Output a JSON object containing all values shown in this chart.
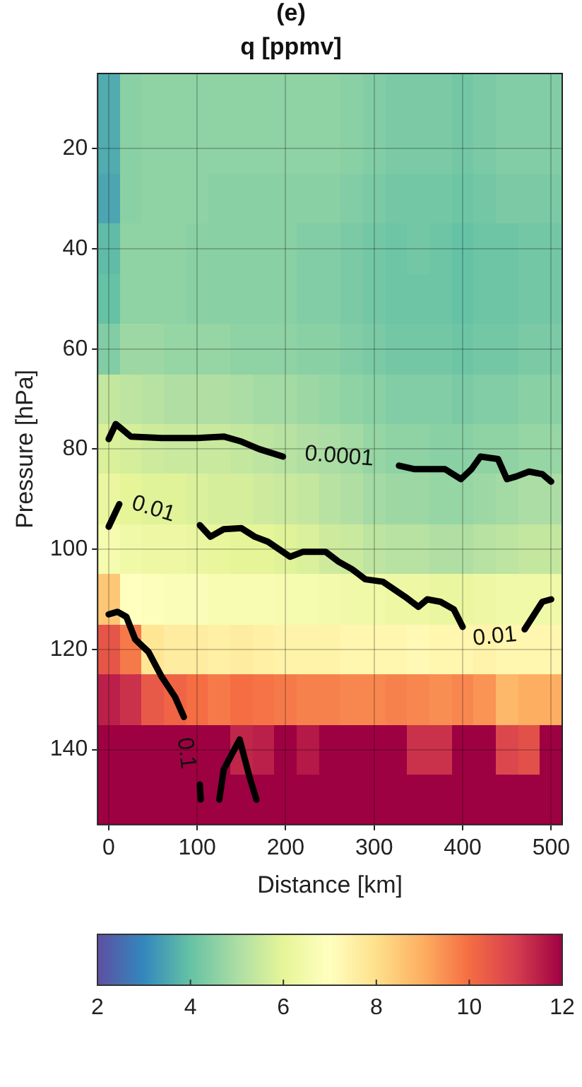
{
  "chart_data": [
    {
      "type": "heatmap",
      "title": "(e)",
      "subtitle": "q [ppmv]",
      "clim": [
        2,
        12
      ],
      "cticks": [
        2,
        4,
        6,
        8,
        10,
        12
      ],
      "tick_labels": false,
      "categories": [
        "0",
        null,
        null,
        null,
        "100",
        null,
        null,
        null,
        "200",
        null,
        null,
        null,
        "300",
        null,
        null,
        null,
        "400",
        null,
        null,
        null,
        "500"
      ],
      "y_categories": [
        null,
        "20",
        null,
        "40",
        null,
        "60",
        null,
        "80",
        null,
        "100",
        null,
        "120",
        null,
        "140",
        null
      ],
      "cells": [
        [
          3.6,
          4.5,
          4.6,
          4.6,
          4.6,
          4.6,
          4.6,
          4.6,
          4.6,
          4.6,
          4.6,
          4.5,
          4.4,
          4.3,
          4.3,
          4.3,
          4.2,
          4.3,
          4.4,
          4.4,
          4.4
        ],
        [
          3.6,
          4.5,
          4.6,
          4.6,
          4.6,
          4.6,
          4.6,
          4.6,
          4.6,
          4.6,
          4.6,
          4.5,
          4.4,
          4.3,
          4.3,
          4.3,
          4.2,
          4.3,
          4.4,
          4.4,
          4.4
        ],
        [
          3.5,
          4.5,
          4.6,
          4.6,
          4.6,
          4.5,
          4.5,
          4.5,
          4.5,
          4.5,
          4.5,
          4.4,
          4.3,
          4.2,
          4.2,
          4.2,
          4.1,
          4.2,
          4.3,
          4.3,
          4.3
        ],
        [
          3.9,
          4.6,
          4.6,
          4.6,
          4.5,
          4.5,
          4.5,
          4.5,
          4.5,
          4.4,
          4.4,
          4.3,
          4.2,
          4.1,
          4.2,
          4.1,
          4.0,
          4.1,
          4.1,
          4.2,
          4.2
        ],
        [
          4.0,
          4.6,
          4.6,
          4.6,
          4.5,
          4.5,
          4.5,
          4.5,
          4.5,
          4.4,
          4.4,
          4.3,
          4.2,
          4.1,
          4.1,
          4.1,
          4.0,
          4.1,
          4.1,
          4.2,
          4.2
        ],
        [
          4.4,
          4.8,
          4.8,
          4.7,
          4.7,
          4.7,
          4.6,
          4.6,
          4.6,
          4.5,
          4.5,
          4.4,
          4.3,
          4.2,
          4.2,
          4.2,
          4.1,
          4.2,
          4.2,
          4.3,
          4.3
        ],
        [
          5.4,
          5.3,
          5.2,
          5.1,
          5.1,
          5.1,
          5.0,
          4.9,
          4.9,
          4.8,
          4.7,
          4.6,
          4.5,
          4.4,
          4.4,
          4.4,
          4.3,
          4.4,
          4.4,
          4.5,
          4.5
        ],
        [
          5.8,
          5.7,
          5.6,
          5.5,
          5.5,
          5.5,
          5.4,
          5.3,
          5.2,
          5.1,
          5.0,
          4.9,
          4.7,
          4.6,
          4.6,
          4.5,
          4.5,
          4.6,
          4.6,
          4.7,
          4.7
        ],
        [
          6.2,
          6.0,
          5.9,
          5.9,
          5.8,
          5.7,
          5.7,
          5.6,
          5.5,
          5.4,
          5.2,
          5.1,
          4.9,
          4.8,
          4.8,
          4.7,
          4.7,
          4.8,
          4.9,
          5.0,
          5.0
        ],
        [
          6.6,
          6.4,
          6.3,
          6.3,
          6.2,
          6.1,
          6.0,
          6.0,
          5.9,
          5.8,
          5.6,
          5.5,
          5.3,
          5.2,
          5.2,
          5.1,
          5.1,
          5.2,
          5.3,
          5.4,
          5.4
        ],
        [
          8.5,
          7.0,
          6.9,
          6.8,
          6.8,
          6.7,
          6.7,
          6.7,
          6.6,
          6.6,
          6.5,
          6.4,
          6.4,
          6.3,
          6.3,
          6.2,
          6.2,
          6.3,
          6.4,
          6.4,
          6.4
        ],
        [
          10.5,
          9.8,
          7.8,
          7.6,
          7.6,
          7.5,
          7.6,
          7.5,
          7.4,
          7.4,
          7.4,
          7.3,
          7.3,
          7.3,
          7.2,
          7.3,
          7.3,
          7.4,
          7.3,
          7.3,
          7.3
        ],
        [
          11.5,
          11.2,
          10.4,
          10.2,
          10.0,
          9.8,
          10.0,
          9.9,
          9.8,
          9.7,
          9.7,
          9.6,
          9.6,
          9.7,
          9.6,
          9.5,
          9.6,
          9.4,
          8.8,
          9.0,
          9.0
        ],
        [
          12,
          12,
          12,
          12,
          12,
          12,
          11.4,
          11.5,
          12,
          11.6,
          12,
          12,
          12,
          12,
          11.2,
          11.2,
          12,
          12,
          10.8,
          10.6,
          12
        ],
        [
          12,
          12,
          12,
          12,
          12,
          12,
          12,
          12,
          12,
          12,
          12,
          12,
          12,
          12,
          12,
          12,
          12,
          12,
          12,
          12,
          12
        ]
      ]
    },
    {
      "type": "line",
      "xlabel": "Distance [km]",
      "ylabel": "Pressure [hPa]",
      "grid": true,
      "xlim": [
        -12.5,
        512.5
      ],
      "xticks": [
        0,
        100,
        200,
        300,
        400,
        500
      ],
      "ylim": [
        155,
        5
      ],
      "yticks": [
        20,
        40,
        60,
        80,
        100,
        120,
        140
      ],
      "series": [
        {
          "color": "#000000",
          "x": [
            0,
            8,
            15,
            25,
            60,
            100,
            130,
            150,
            170,
            197,
            262,
            328,
            345,
            380,
            398,
            410,
            420,
            440,
            450,
            460,
            475,
            490,
            500
          ],
          "values": [
            78,
            75,
            76,
            77.5,
            77.8,
            77.8,
            77.5,
            78.5,
            80,
            81.5,
            null,
            83.3,
            84,
            84,
            86,
            84,
            81.5,
            82,
            86,
            85.5,
            84.5,
            85,
            86.5
          ]
        },
        {
          "color": "#000000",
          "x": [
            0,
            12,
            50,
            103,
            115,
            130,
            150,
            165,
            180,
            205,
            220,
            245,
            260,
            275,
            290,
            310,
            335,
            350,
            360,
            375,
            390,
            400,
            435,
            470,
            490,
            500
          ],
          "values": [
            95.5,
            91,
            null,
            95.2,
            97.5,
            96,
            95.8,
            97.5,
            98.5,
            101.5,
            100.5,
            100.5,
            102.5,
            104,
            106,
            106.5,
            109.5,
            111.5,
            110,
            110.5,
            112,
            115.5,
            null,
            116,
            110.5,
            110
          ]
        },
        {
          "color": "#000000",
          "x": [
            0,
            10,
            20,
            30,
            45,
            60,
            75,
            85,
            95,
            103,
            104,
            115,
            125,
            130,
            148,
            160,
            167
          ],
          "values": [
            113,
            112.5,
            113.5,
            118,
            120.5,
            125.5,
            129.5,
            133.5,
            null,
            147,
            150,
            null,
            150,
            144,
            138,
            146,
            150
          ]
        }
      ],
      "annotations": [
        "0.0001",
        "0.01",
        "0.01",
        "0.1"
      ]
    }
  ]
}
